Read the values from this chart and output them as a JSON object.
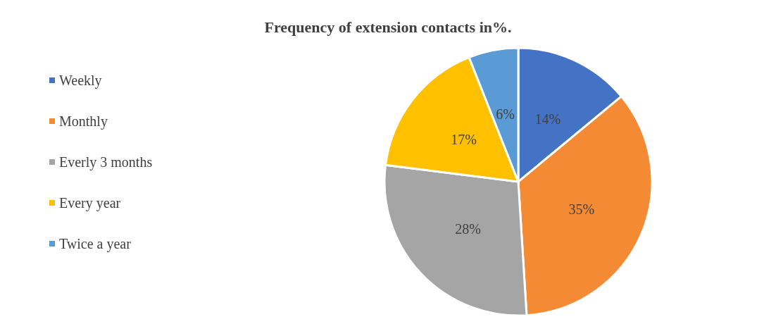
{
  "chart_data": {
    "type": "pie",
    "title": "Frequency of extension contacts in%.",
    "categories": [
      "Weekly",
      "Monthly",
      "Everly 3 months",
      "Every year",
      "Twice a year"
    ],
    "values": [
      14,
      35,
      28,
      17,
      6
    ],
    "value_labels": [
      "14%",
      "35%",
      "28%",
      "17%",
      "6%"
    ],
    "colors": [
      "#4472c4",
      "#f58a35",
      "#a5a5a5",
      "#ffc000",
      "#5b9bd5"
    ],
    "legend": "left"
  }
}
